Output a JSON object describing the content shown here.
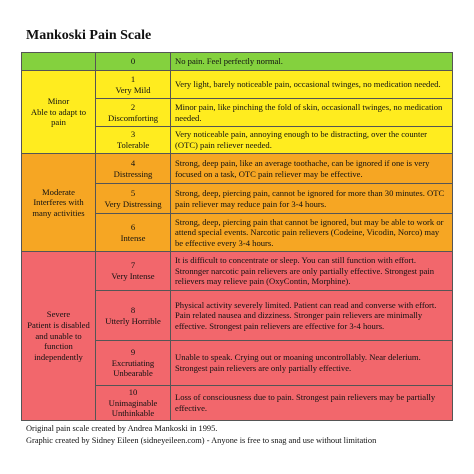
{
  "header": {
    "title": "Mankoski Pain Scale"
  },
  "table": {
    "groups": [
      {
        "color": "#84d13e",
        "rows": [
          {
            "level": "0",
            "description": "No pain. Feel perfectly normal."
          }
        ]
      },
      {
        "color": "#ffec1f",
        "title": "Minor",
        "subtitle": "Able to adapt to pain",
        "rows": [
          {
            "level": "1",
            "name": "Very Mild",
            "description": "Very light, barely noticeable pain, occasional twinges, no medication needed."
          },
          {
            "level": "2",
            "name": "Discomforting",
            "description": "Minor pain, like pinching the fold of skin, occasionall twinges, no medication needed."
          },
          {
            "level": "3",
            "name": "Tolerable",
            "description": "Very noticeable pain, annoying enough to be distracting, over the counter (OTC) pain reliever needed."
          }
        ]
      },
      {
        "color": "#f6a623",
        "title": "Moderate",
        "subtitle": "Interferes with many activities",
        "rows": [
          {
            "level": "4",
            "name": "Distressing",
            "description": "Strong, deep pain, like an average toothache, can be ignored if one is very focused on a task, OTC pain reliever may be effective."
          },
          {
            "level": "5",
            "name": "Very Distressing",
            "description": "Strong, deep, piercing pain, cannot be ignored for more than 30 minutes. OTC pain reliever may reduce pain for 3-4 hours."
          },
          {
            "level": "6",
            "name": "Intense",
            "description": "Strong, deep, piercing pain that cannot be ignored, but may be able to work or attend special events. Narcotic pain relievers (Codeine, Vicodin, Norco) may be effective every 3-4 hours."
          }
        ]
      },
      {
        "color": "#f2676c",
        "title": "Severe",
        "subtitle": "Patient is disabled and unable to function independently",
        "rows": [
          {
            "level": "7",
            "name": "Very Intense",
            "description": "It is difficult to concentrate or sleep. You can still function with effort. Stronnger narcotic pain relievers are only partially effective. Strongest pain relievers may relieve pain (OxyContin, Morphine)."
          },
          {
            "level": "8",
            "name": "Utterly Horrible",
            "description": "Physical activity severely limited. Patient can read and converse with effort. Pain related nausea and dizziness. Stronger pain relievers are minimally effective. Strongest pain relievers are effective for 3-4 hours."
          },
          {
            "level": "9",
            "name": "Excrutiating Unbearable",
            "description": "Unable to speak. Crying out or moaning uncontrollably. Near delerium. Strongest pain relievers are only partially effective."
          },
          {
            "level": "10",
            "name": "Unimaginable Unthinkable",
            "description": "Loss of consciousness due to pain. Strongest pain relievers may be partially effective."
          }
        ]
      }
    ]
  },
  "footer": {
    "line1": "Original pain scale created by Andrea Mankoski in 1995.",
    "line2": "Graphic created by Sidney Eileen (sidneyeileen.com) - Anyone is free to snag and use without limitation"
  }
}
